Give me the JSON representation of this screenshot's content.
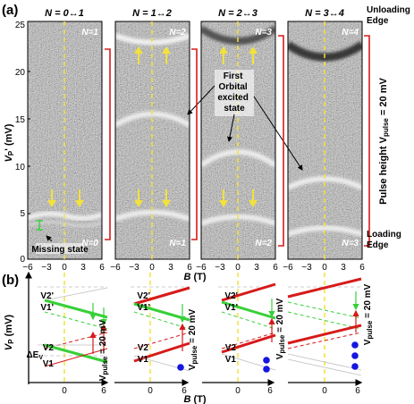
{
  "panel_a": {
    "label": "(a)",
    "panel_titles": [
      "N = 0↔1",
      "N = 1↔2",
      "N = 2↔3",
      "N = 3↔4"
    ],
    "inner_labels_top": [
      "N=1",
      "N=2",
      "N=3",
      "N=4"
    ],
    "inner_labels_bottom": [
      "N=0",
      "N=1",
      "N=2",
      "N=3"
    ],
    "y_ticks": [
      "0",
      "5",
      "10",
      "15",
      "20",
      "25"
    ],
    "x_ticks": [
      "−6",
      "−3",
      "0",
      "3",
      "6"
    ],
    "y_label": "V",
    "y_label_sub": "P",
    "y_label_rest": "' (mV)",
    "x_label_var": "B",
    "x_label_unit": " (T)",
    "annotation_excited": [
      "First",
      "Orbital",
      "excited",
      "state"
    ],
    "annotation_missing": "Missing state",
    "unloading_edge": [
      "Unloading",
      "Edge"
    ],
    "loading_edge": [
      "Loading",
      "Edge"
    ],
    "pulse_height_label": "Pulse height V",
    "pulse_height_sub": "pulse",
    "pulse_height_value": " = 20 mV"
  },
  "panel_b": {
    "label": "(b)",
    "y_label": "V",
    "y_label_sub": "P",
    "y_label_rest": " (mV)",
    "level_labels": [
      "V2'",
      "V1'",
      "V2",
      "V1"
    ],
    "delta_label": "ΔE",
    "delta_sub": "V",
    "x_ticks": [
      "0",
      "6"
    ],
    "x_label_var": "B",
    "x_label_unit": " (T)",
    "vpulse_label": "V",
    "vpulse_sub": "pulse",
    "vpulse_value": " = 20 mV"
  },
  "colors": {
    "green": "#38d038",
    "red": "#d71a1a",
    "blue": "#1616e0",
    "yellow": "#f3e23a",
    "gray_line": "#bfbfbf"
  }
}
